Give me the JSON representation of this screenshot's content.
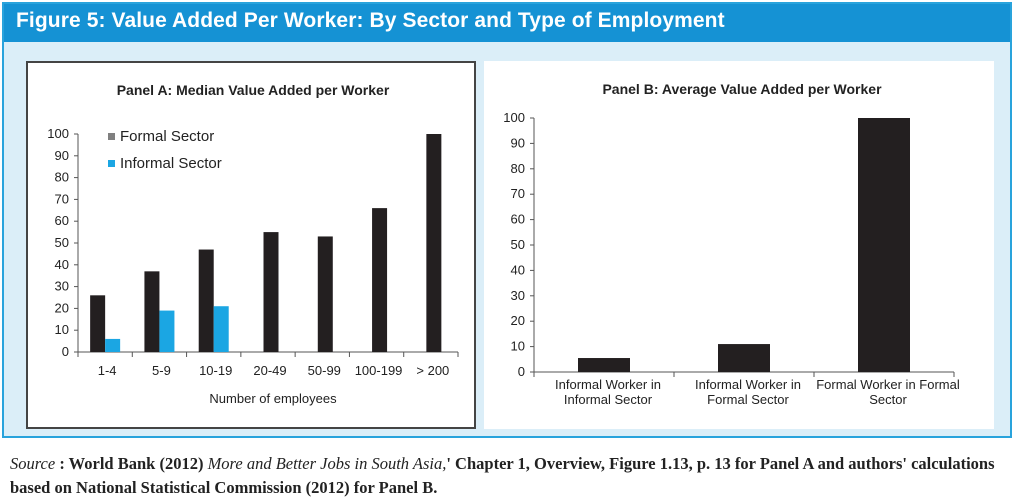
{
  "figure": {
    "title": "Figure 5:   Value Added Per Worker: By Sector and Type of Employment",
    "header_color": "#1592d4",
    "background_color": "#dbeef8"
  },
  "chart_data": [
    {
      "type": "bar",
      "title": "Panel A: Median Value Added per Worker",
      "xlabel": "Number of employees",
      "ylabel": "",
      "ylim": [
        0,
        100
      ],
      "yticks": [
        0,
        10,
        20,
        30,
        40,
        50,
        60,
        70,
        80,
        90,
        100
      ],
      "categories": [
        "1-4",
        "5-9",
        "10-19",
        "20-49",
        "50-99",
        "100-199",
        "> 200"
      ],
      "legend_position": "top-left",
      "series": [
        {
          "name": "Formal Sector",
          "legend_color": "#808080",
          "bar_color": "#231f20",
          "values": [
            26,
            37,
            47,
            55,
            53,
            66,
            100
          ]
        },
        {
          "name": "Informal Sector",
          "legend_color": "#1ba6e3",
          "bar_color": "#1ba6e3",
          "values": [
            6,
            19,
            21,
            null,
            null,
            null,
            null
          ]
        }
      ]
    },
    {
      "type": "bar",
      "title": "Panel B: Average Value Added per Worker",
      "xlabel": "",
      "ylabel": "",
      "ylim": [
        0,
        100
      ],
      "yticks": [
        0,
        10,
        20,
        30,
        40,
        50,
        60,
        70,
        80,
        90,
        100
      ],
      "categories": [
        [
          "Informal Worker in",
          "Informal Sector"
        ],
        [
          "Informal Worker in",
          "Formal Sector"
        ],
        [
          "Formal Worker in Formal",
          "Sector"
        ]
      ],
      "bar_color": "#231f20",
      "values": [
        5.5,
        11,
        100
      ]
    }
  ],
  "source": {
    "label": "Source",
    "sep": " : World Bank (2012) ",
    "book": "More and Better Jobs in South Asia,",
    "rest": "' Chapter 1, Overview, Figure 1.13, p. 13 for Panel A and authors' calculations based on National Statistical Commission (2012) for Panel B."
  }
}
